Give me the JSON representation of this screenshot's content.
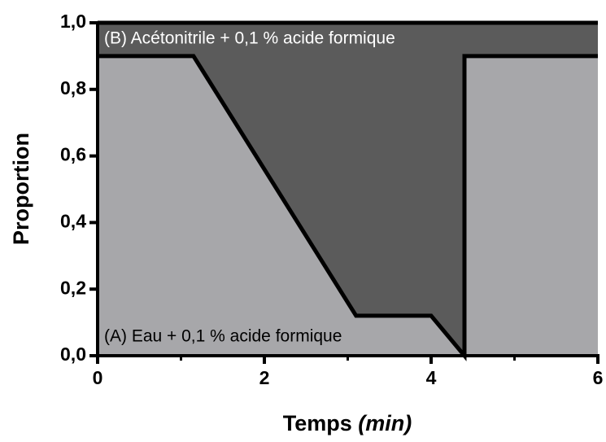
{
  "chart_data": {
    "type": "stacked_area",
    "x_label": "Temps",
    "x_label_unit": "(min)",
    "y_label": "Proportion",
    "x": [
      0,
      1.15,
      3.1,
      4,
      4.4,
      4.4,
      6
    ],
    "series": [
      {
        "name": "(A) Eau + 0,1 % acide formique",
        "color": "#a7a7aa",
        "values": [
          0.9,
          0.9,
          0.12,
          0.12,
          0,
          0.9,
          0.9
        ]
      },
      {
        "name": "(B) Acétonitrile + 0,1 % acide formique",
        "color": "#5b5b5b",
        "values": [
          0.1,
          0.1,
          0.88,
          0.88,
          1,
          0.1,
          0.1
        ]
      }
    ],
    "xlim": [
      0,
      6
    ],
    "xticks": [
      0,
      2,
      4,
      6
    ],
    "xminor_ticks": [
      1,
      3,
      5
    ],
    "ylim": [
      0,
      1
    ],
    "yticks": [
      {
        "value": 0,
        "label": "0,0"
      },
      {
        "value": 0.2,
        "label": "0,2"
      },
      {
        "value": 0.4,
        "label": "0,4"
      },
      {
        "value": 0.6,
        "label": "0,6"
      },
      {
        "value": 0.8,
        "label": "0,8"
      },
      {
        "value": 1,
        "label": "1,0"
      }
    ],
    "line_color": "#000000"
  }
}
